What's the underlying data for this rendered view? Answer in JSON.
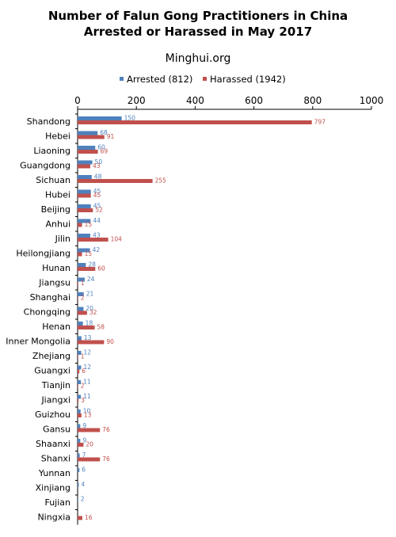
{
  "chart_data": {
    "type": "bar",
    "orientation": "horizontal",
    "title": "Number of Falun Gong Practitioners in China Arrested or Harassed in May 2017",
    "title_lines": [
      "Number of Falun Gong Practitioners in China",
      "Arrested or Harassed in May 2017"
    ],
    "subtitle": "Minghui.org",
    "xlim": [
      0,
      1000
    ],
    "x_ticks": [
      0,
      200,
      400,
      600,
      800,
      1000
    ],
    "x_axis_position": "top",
    "grid": false,
    "legend_position": "top",
    "categories": [
      "Shandong",
      "Hebei",
      "Liaoning",
      "Guangdong",
      "Sichuan",
      "Hubei",
      "Beijing",
      "Anhui",
      "Jilin",
      "Heilongjiang",
      "Hunan",
      "Jiangsu",
      "Shanghai",
      "Chongqing",
      "Henan",
      "Inner Mongolia",
      "Zhejiang",
      "Guangxi",
      "Tianjin",
      "Jiangxi",
      "Guizhou",
      "Gansu",
      "Shaanxi",
      "Shanxi",
      "Yunnan",
      "Xinjiang",
      "Fujian",
      "Ningxia"
    ],
    "series": [
      {
        "name": "Arrested (812)",
        "color": "#4f81bd",
        "values": [
          150,
          68,
          60,
          50,
          48,
          45,
          45,
          44,
          43,
          42,
          28,
          24,
          21,
          20,
          18,
          13,
          12,
          12,
          11,
          11,
          10,
          9,
          9,
          7,
          6,
          4,
          2,
          null
        ]
      },
      {
        "name": "Harassed (1942)",
        "color": "#c0504d",
        "values": [
          797,
          91,
          69,
          43,
          255,
          45,
          52,
          15,
          104,
          15,
          60,
          1,
          2,
          32,
          58,
          90,
          1,
          6,
          2,
          3,
          13,
          76,
          20,
          76,
          null,
          null,
          null,
          16
        ]
      }
    ]
  }
}
